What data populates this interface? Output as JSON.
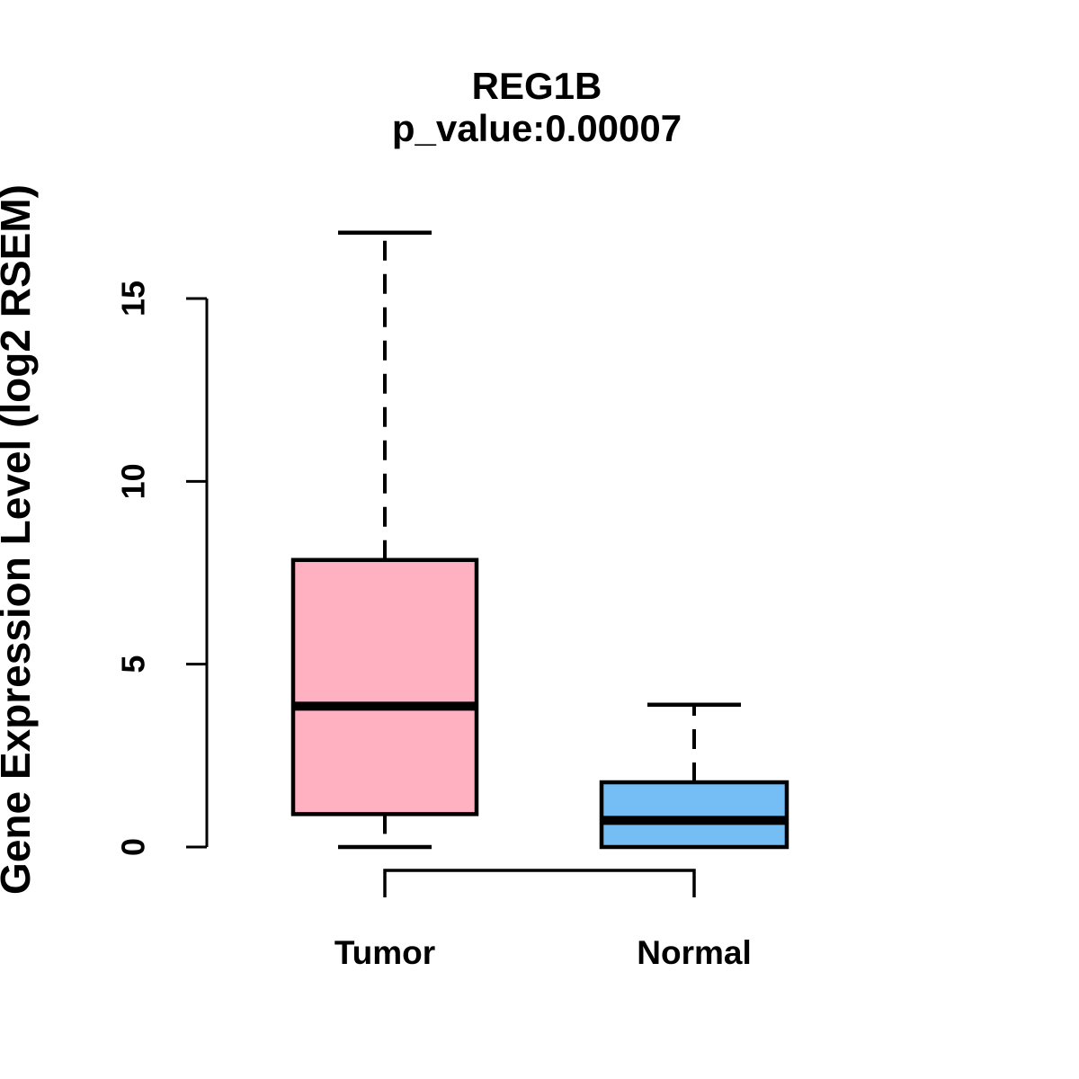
{
  "chart_data": {
    "type": "boxplot",
    "title": "REG1B",
    "subtitle": "p_value:0.00007",
    "ylabel": "Gene Expression Level (log2 RSEM)",
    "xlabel": "",
    "categories": [
      "Tumor",
      "Normal"
    ],
    "series": [
      {
        "name": "Tumor",
        "min": 0,
        "q1": 0.9,
        "median": 3.85,
        "q3": 7.85,
        "max": 16.8,
        "fill": "#FFB0C1"
      },
      {
        "name": "Normal",
        "min": 0,
        "q1": 0,
        "median": 0.73,
        "q3": 1.77,
        "max": 3.89,
        "fill": "#74BEF5"
      }
    ],
    "yticks": [
      0,
      5,
      10,
      15
    ],
    "ylim": [
      0,
      16.8
    ],
    "grid": false,
    "legend": "none",
    "whisker_style": "dashed",
    "comparison_bracket": {
      "between": [
        "Tumor",
        "Normal"
      ]
    },
    "colors": {
      "tumor_fill": "#FFB0C1",
      "normal_fill": "#74BEF5",
      "box_border": "#000000",
      "median": "#000000",
      "axis": "#000000",
      "text": "#000000",
      "background": "#FFFFFF"
    }
  }
}
